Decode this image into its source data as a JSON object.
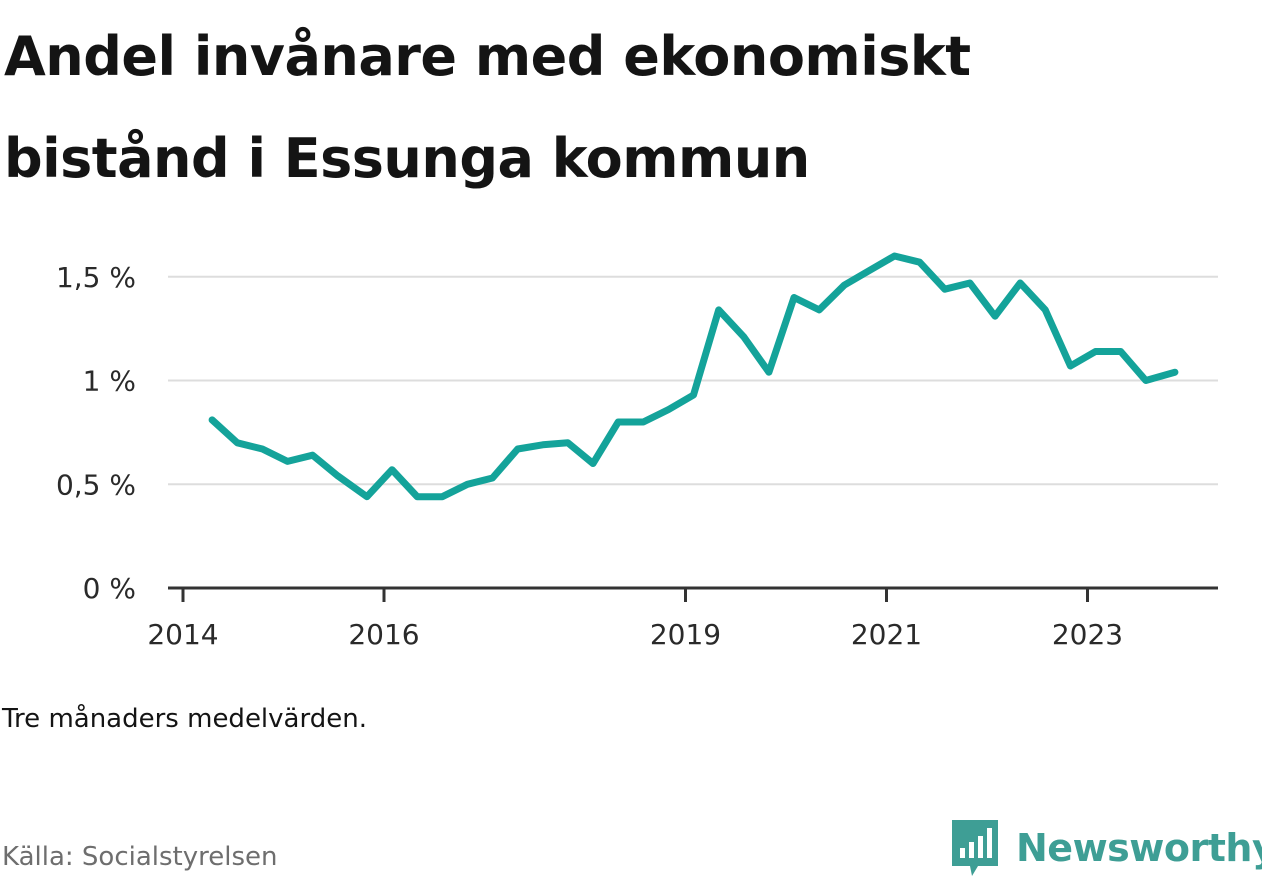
{
  "title": "Andel invånare med ekonomiskt bistånd i Essunga kommun",
  "note": "Tre månaders medelvärden.",
  "source": "Källa: Socialstyrelsen",
  "brand": {
    "name": "Newsworthy",
    "icon": "newsworthy-logo-icon",
    "color": "#3e9e95"
  },
  "colors": {
    "line": "#14a39a",
    "grid": "#dddddd",
    "axis": "#333333"
  },
  "chart_data": {
    "type": "line",
    "title": "Andel invånare med ekonomiskt bistånd i Essunga kommun",
    "xlabel": "",
    "ylabel": "",
    "ylim": [
      0,
      1.5
    ],
    "xlim": [
      2014,
      2024.2
    ],
    "yticks": [
      {
        "value": 0,
        "label": "0 %"
      },
      {
        "value": 0.5,
        "label": "0,5 %"
      },
      {
        "value": 1,
        "label": "1 %"
      },
      {
        "value": 1.5,
        "label": "1,5 %"
      }
    ],
    "xticks": [
      {
        "value": 2014,
        "label": "2014"
      },
      {
        "value": 2016,
        "label": "2016"
      },
      {
        "value": 2019,
        "label": "2019"
      },
      {
        "value": 2021,
        "label": "2021"
      },
      {
        "value": 2023,
        "label": "2023"
      }
    ],
    "grid": true,
    "series": [
      {
        "x": [
          2014.29,
          2014.54,
          2014.79,
          2015.04,
          2015.29,
          2015.54,
          2015.83,
          2016.08,
          2016.33,
          2016.58,
          2016.83,
          2017.08,
          2017.33,
          2017.58,
          2017.83,
          2018.08,
          2018.33,
          2018.58,
          2018.83,
          2019.08,
          2019.33,
          2019.58,
          2019.83,
          2020.08,
          2020.33,
          2020.58,
          2020.83,
          2021.08,
          2021.33,
          2021.58,
          2021.83,
          2022.08,
          2022.33,
          2022.58,
          2022.83,
          2023.08,
          2023.33,
          2023.58,
          2023.87
        ],
        "values": [
          0.81,
          0.7,
          0.67,
          0.61,
          0.64,
          0.54,
          0.44,
          0.57,
          0.44,
          0.44,
          0.5,
          0.53,
          0.67,
          0.69,
          0.7,
          0.6,
          0.8,
          0.8,
          0.86,
          0.93,
          1.34,
          1.21,
          1.04,
          1.4,
          1.34,
          1.46,
          1.53,
          1.6,
          1.57,
          1.44,
          1.47,
          1.31,
          1.47,
          1.34,
          1.07,
          1.14,
          1.14,
          1.0,
          1.04
        ]
      }
    ]
  }
}
